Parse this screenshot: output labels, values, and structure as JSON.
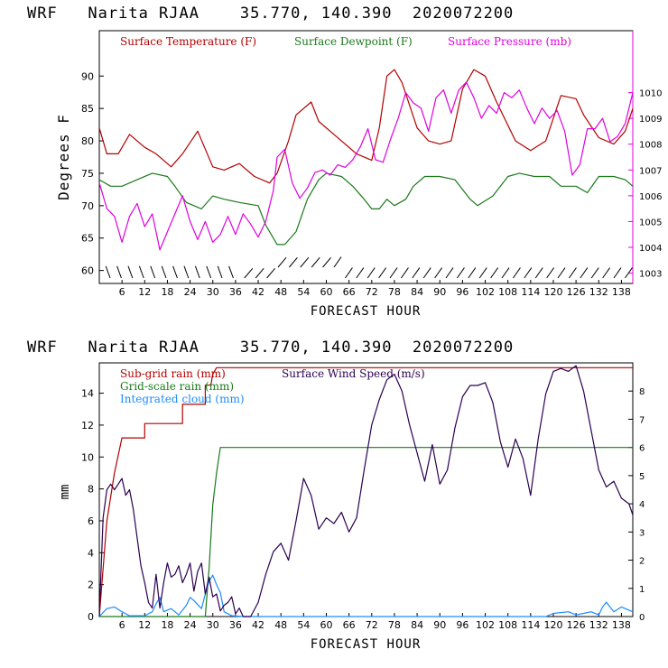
{
  "chart_data": [
    {
      "type": "line",
      "title": "WRF   Narita RJAA    35.770, 140.390  2020072200",
      "xlabel": "FORECAST HOUR",
      "ylabel": "Degrees F",
      "xlim": [
        0,
        141
      ],
      "ylim": [
        58,
        97
      ],
      "y2lim": [
        1002.6,
        1012.4
      ],
      "xticks": [
        6,
        12,
        18,
        24,
        30,
        36,
        42,
        48,
        54,
        60,
        66,
        72,
        78,
        84,
        90,
        96,
        102,
        108,
        114,
        120,
        126,
        132,
        138
      ],
      "yticks": [
        60,
        65,
        70,
        75,
        80,
        85,
        90
      ],
      "y2ticks": [
        1003,
        1004,
        1005,
        1006,
        1007,
        1008,
        1009,
        1010
      ],
      "legend": [
        "Surface Temperature (F)",
        "Surface Dewpoint (F)",
        "Surface Pressure (mb)"
      ],
      "series": [
        {
          "name": "Surface Temperature (F)",
          "color": "#b30000",
          "axis": "left",
          "x": [
            0,
            2,
            5,
            8,
            12,
            15,
            19,
            22,
            26,
            30,
            33,
            37,
            41,
            45,
            47,
            50,
            52,
            56,
            58,
            62,
            64,
            68,
            72,
            74,
            76,
            78,
            80,
            84,
            87,
            90,
            93,
            96,
            99,
            102,
            105,
            110,
            114,
            118,
            122,
            126,
            128,
            132,
            136,
            139,
            141
          ],
          "y": [
            82,
            78,
            78,
            81,
            79,
            78,
            76,
            78,
            81.5,
            76,
            75.5,
            76.5,
            74.5,
            73.5,
            75,
            80,
            84,
            86,
            83,
            81,
            80,
            78,
            77,
            82,
            90,
            91,
            89,
            82,
            80,
            79.5,
            80,
            88,
            91,
            90,
            86,
            80,
            78.5,
            80,
            87,
            86.5,
            84,
            80.5,
            79.5,
            81.5,
            85
          ]
        },
        {
          "name": "Surface Dewpoint (F)",
          "color": "#1a7a1a",
          "axis": "left",
          "x": [
            0,
            3,
            6,
            10,
            14,
            18,
            20,
            23,
            25,
            27,
            30,
            33,
            37,
            42,
            44,
            47,
            49,
            52,
            55,
            58,
            60,
            64,
            67,
            70,
            72,
            74,
            76,
            78,
            81,
            83,
            86,
            90,
            94,
            98,
            100,
            104,
            108,
            111,
            115,
            119,
            122,
            126,
            129,
            132,
            136,
            139,
            141
          ],
          "y": [
            74,
            73,
            73,
            74,
            75,
            74.5,
            73,
            70.5,
            70,
            69.5,
            71.5,
            71,
            70.5,
            70,
            67,
            64,
            64,
            66,
            71,
            74,
            75,
            74.5,
            73,
            71,
            69.5,
            69.5,
            71,
            70,
            71,
            73,
            74.5,
            74.5,
            74,
            71,
            70,
            71.5,
            74.5,
            75,
            74.5,
            74.5,
            73,
            73,
            72,
            74.5,
            74.5,
            74,
            73
          ]
        },
        {
          "name": "Surface Pressure (mb)",
          "color": "#e000e0",
          "axis": "right",
          "x": [
            0,
            2,
            4,
            6,
            8,
            10,
            12,
            14,
            16,
            18,
            20,
            22,
            24,
            26,
            28,
            30,
            32,
            34,
            36,
            38,
            40,
            42,
            44,
            46,
            47,
            49,
            51,
            53,
            55,
            57,
            59,
            61,
            63,
            65,
            67,
            69,
            71,
            73,
            75,
            77,
            79,
            81,
            83,
            85,
            87,
            89,
            91,
            93,
            95,
            97,
            99,
            101,
            103,
            105,
            107,
            109,
            111,
            113,
            115,
            117,
            119,
            121,
            123,
            125,
            127,
            129,
            131,
            133,
            135,
            137,
            139,
            141
          ],
          "y": [
            1006.5,
            1005.5,
            1005.2,
            1004.2,
            1005.2,
            1005.7,
            1004.8,
            1005.3,
            1003.9,
            1004.6,
            1005.3,
            1006.0,
            1005.0,
            1004.3,
            1005.0,
            1004.2,
            1004.5,
            1005.2,
            1004.5,
            1005.3,
            1004.9,
            1004.4,
            1005.0,
            1006.2,
            1007.5,
            1007.8,
            1006.5,
            1005.9,
            1006.3,
            1006.9,
            1007.0,
            1006.8,
            1007.2,
            1007.1,
            1007.4,
            1007.9,
            1008.6,
            1007.4,
            1007.3,
            1008.2,
            1009.0,
            1010.0,
            1009.6,
            1009.4,
            1008.5,
            1009.8,
            1010.1,
            1009.2,
            1010.1,
            1010.4,
            1009.8,
            1009.0,
            1009.5,
            1009.2,
            1010.0,
            1009.8,
            1010.1,
            1009.4,
            1008.8,
            1009.4,
            1009.0,
            1009.3,
            1008.5,
            1006.8,
            1007.2,
            1008.6,
            1008.6,
            1009.0,
            1008.1,
            1008.3,
            1008.8,
            1010.0
          ]
        }
      ]
    },
    {
      "type": "line",
      "title": "WRF   Narita RJAA    35.770, 140.390  2020072200",
      "xlabel": "FORECAST HOUR",
      "ylabel": "mm",
      "xlim": [
        0,
        141
      ],
      "ylim": [
        0,
        15.9
      ],
      "y2lim": [
        0,
        9
      ],
      "xticks": [
        6,
        12,
        18,
        24,
        30,
        36,
        42,
        48,
        54,
        60,
        66,
        72,
        78,
        84,
        90,
        96,
        102,
        108,
        114,
        120,
        126,
        132,
        138
      ],
      "yticks": [
        0,
        2,
        4,
        6,
        8,
        10,
        12,
        14
      ],
      "y2ticks": [
        0,
        1,
        2,
        3,
        4,
        5,
        6,
        7,
        8
      ],
      "legend": [
        "Sub-grid rain (mm)",
        "Surface Wind Speed (m/s)",
        "Grid-scale rain (mm)",
        "Integrated cloud (mm)"
      ],
      "series": [
        {
          "name": "Sub-grid rain (mm)",
          "color": "#b30000",
          "axis": "left",
          "x": [
            0,
            1,
            2,
            4,
            6,
            6,
            12,
            12,
            22,
            22,
            28,
            28,
            29.5,
            30,
            31,
            141
          ],
          "y": [
            0,
            3,
            6,
            9,
            11.2,
            11.2,
            11.2,
            12.1,
            12.1,
            13.3,
            13.3,
            14.5,
            14.5,
            15.2,
            15.6,
            15.6
          ]
        },
        {
          "name": "Grid-scale rain (mm)",
          "color": "#1a7a1a",
          "axis": "left",
          "x": [
            0,
            28,
            29,
            30,
            31,
            32,
            141
          ],
          "y": [
            0,
            0,
            3,
            7,
            9,
            10.6,
            10.6
          ]
        },
        {
          "name": "Integrated cloud (mm)",
          "color": "#1a8cff",
          "axis": "left",
          "x": [
            0,
            2,
            4,
            6,
            8,
            12,
            14,
            15,
            16,
            17,
            19,
            21,
            23,
            24,
            25,
            27,
            28,
            29,
            30,
            31,
            32,
            33,
            35,
            38,
            118,
            120,
            124,
            126,
            128,
            130,
            132,
            133,
            134,
            136,
            138,
            141
          ],
          "y": [
            0,
            0.5,
            0.6,
            0.3,
            0.05,
            0.05,
            0.3,
            0.8,
            1.2,
            0.3,
            0.5,
            0.1,
            0.7,
            1.2,
            1.0,
            0.5,
            1.4,
            2.2,
            2.6,
            2.0,
            1.5,
            0.3,
            0.05,
            0,
            0,
            0.2,
            0.3,
            0.1,
            0.2,
            0.3,
            0.1,
            0.6,
            0.9,
            0.3,
            0.6,
            0.3
          ]
        },
        {
          "name": "Surface Wind Speed (m/s)",
          "color": "#2a0050",
          "axis": "right",
          "x": [
            0,
            1,
            2,
            3,
            4,
            5,
            6,
            7,
            8,
            9,
            10,
            11,
            12,
            13,
            14,
            15,
            16,
            17,
            18,
            19,
            20,
            21,
            22,
            23,
            24,
            25,
            26,
            27,
            28,
            29,
            30,
            31,
            32,
            33,
            34,
            35,
            36,
            37,
            38,
            40,
            42,
            44,
            46,
            48,
            50,
            52,
            54,
            56,
            58,
            60,
            62,
            64,
            66,
            68,
            70,
            72,
            74,
            76,
            78,
            80,
            82,
            84,
            86,
            88,
            90,
            92,
            94,
            96,
            98,
            100,
            102,
            104,
            106,
            108,
            110,
            112,
            114,
            116,
            118,
            120,
            122,
            124,
            126,
            128,
            130,
            132,
            134,
            136,
            138,
            140,
            141
          ],
          "y": [
            0,
            3.5,
            4.5,
            4.7,
            4.5,
            4.7,
            4.9,
            4.3,
            4.5,
            3.8,
            2.8,
            1.8,
            1.2,
            0.5,
            0.3,
            1.5,
            0.3,
            1.2,
            1.9,
            1.4,
            1.5,
            1.8,
            1.2,
            1.5,
            1.9,
            0.9,
            1.6,
            1.9,
            0.8,
            1.4,
            0.7,
            0.8,
            0.2,
            0.4,
            0.5,
            0.7,
            0.1,
            0.3,
            0,
            0,
            0.5,
            1.5,
            2.3,
            2.6,
            2.0,
            3.4,
            4.9,
            4.3,
            3.1,
            3.5,
            3.3,
            3.7,
            3.0,
            3.5,
            5.2,
            6.8,
            7.7,
            8.4,
            8.6,
            8.0,
            6.8,
            5.8,
            4.8,
            6.1,
            4.7,
            5.2,
            6.7,
            7.8,
            8.2,
            8.2,
            8.3,
            7.6,
            6.2,
            5.3,
            6.3,
            5.6,
            4.3,
            6.3,
            7.9,
            8.7,
            8.8,
            8.7,
            8.9,
            8.0,
            6.6,
            5.2,
            4.6,
            4.8,
            4.2,
            4.0,
            3.6
          ]
        }
      ]
    }
  ]
}
